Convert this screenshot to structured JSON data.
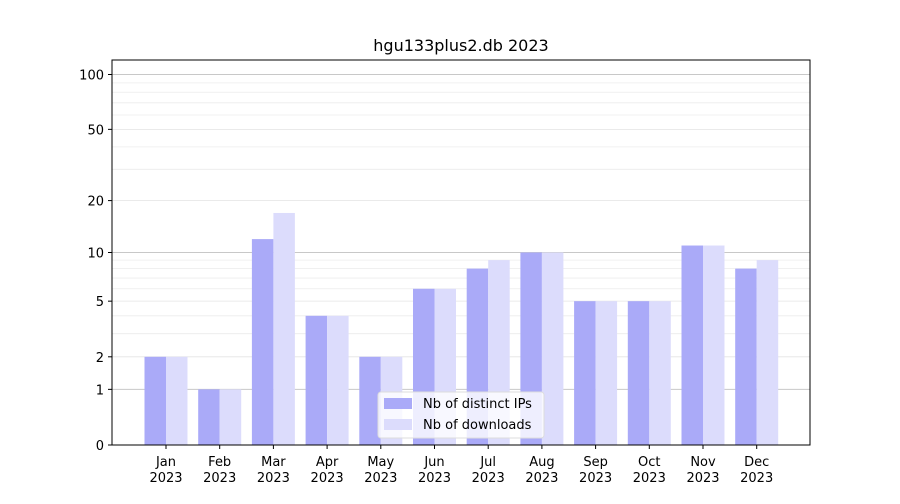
{
  "chart_data": {
    "type": "bar",
    "title": "hgu133plus2.db 2023",
    "categories": [
      [
        "Jan",
        "2023"
      ],
      [
        "Feb",
        "2023"
      ],
      [
        "Mar",
        "2023"
      ],
      [
        "Apr",
        "2023"
      ],
      [
        "May",
        "2023"
      ],
      [
        "Jun",
        "2023"
      ],
      [
        "Jul",
        "2023"
      ],
      [
        "Aug",
        "2023"
      ],
      [
        "Sep",
        "2023"
      ],
      [
        "Oct",
        "2023"
      ],
      [
        "Nov",
        "2023"
      ],
      [
        "Dec",
        "2023"
      ]
    ],
    "series": [
      {
        "name": "Nb of distinct IPs",
        "color": "#aaaaf8",
        "values": [
          2,
          1,
          12,
          4,
          2,
          6,
          8,
          10,
          5,
          5,
          11,
          8
        ]
      },
      {
        "name": "Nb of downloads",
        "color": "#dcdcfc",
        "values": [
          2,
          1,
          17,
          4,
          2,
          6,
          9,
          10,
          5,
          5,
          11,
          9
        ]
      }
    ],
    "yscale": "log1p",
    "ylim": [
      0,
      120
    ],
    "yticks": [
      0,
      1,
      2,
      5,
      10,
      20,
      50,
      100
    ],
    "grid": true,
    "legend_position": "bottom-center"
  }
}
